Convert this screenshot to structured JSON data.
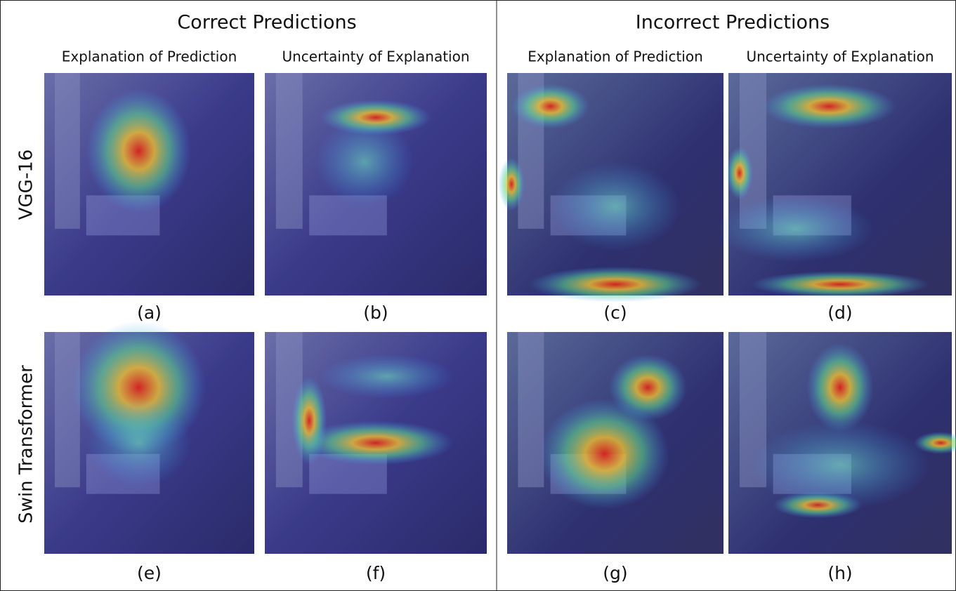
{
  "sections": [
    {
      "title": "Correct Predictions",
      "columns": [
        "Explanation of Prediction",
        "Uncertainty of Explanation"
      ]
    },
    {
      "title": "Incorrect Predictions",
      "columns": [
        "Explanation of Prediction",
        "Uncertainty of Explanation"
      ]
    }
  ],
  "rows": [
    "VGG-16",
    "Swin Transformer"
  ],
  "panels": [
    [
      "(a)",
      "(b)",
      "(c)",
      "(d)"
    ],
    [
      "(e)",
      "(f)",
      "(g)",
      "(h)"
    ]
  ]
}
